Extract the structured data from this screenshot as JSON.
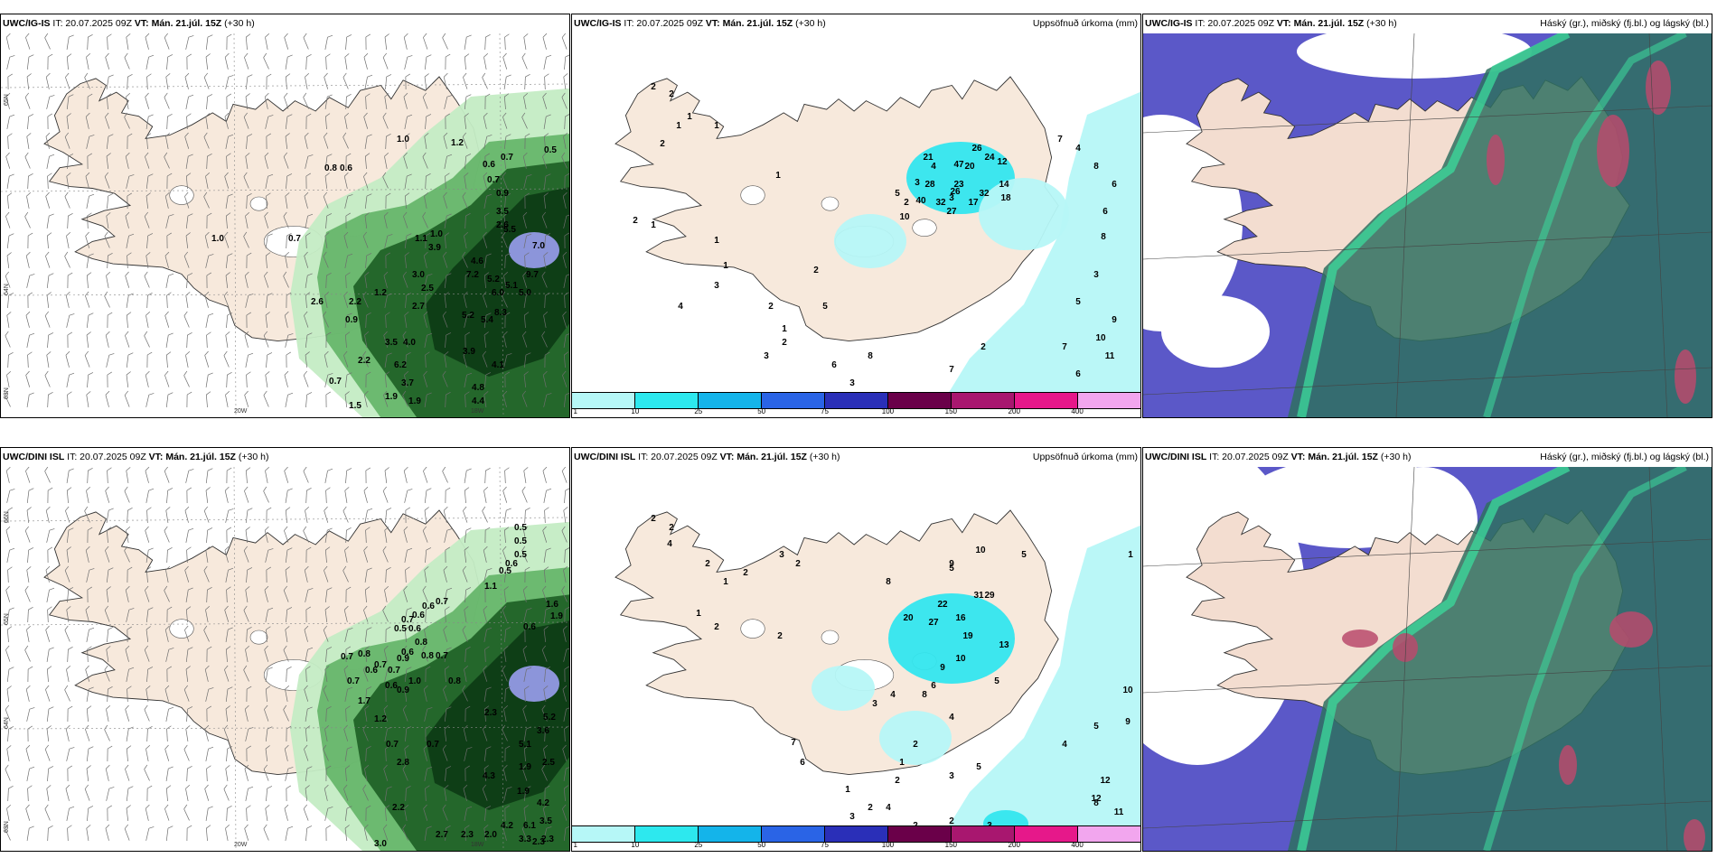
{
  "colors": {
    "land": "#f7e9dc",
    "green_light": "#c4ecc4",
    "green_mid": "#5cb060",
    "green_dark": "#1d5e24",
    "green_darkest": "#0c3a14",
    "blue_precip": "#9a9ef0",
    "cyan_light": "#b6f7f7",
    "cyan": "#33e6ee",
    "cloud_blue": "#5b58c8",
    "cloud_teal": "#2f7060",
    "cloud_green": "#3cd49a",
    "cloud_red": "#b84a6c"
  },
  "legend": {
    "colors": [
      "#b6f7f7",
      "#2de8ee",
      "#14b4ea",
      "#2a64e6",
      "#2a2fb8",
      "#6a0049",
      "#a8176f",
      "#e6188a",
      "#f2a6ee"
    ],
    "labels": [
      "1",
      "10",
      "25",
      "50",
      "75",
      "100",
      "150",
      "200",
      "400"
    ]
  },
  "panels": [
    {
      "id": "p1",
      "model": "UWC/IG-IS",
      "header_mid": "IT: 20.07.2025 09Z",
      "vt_label": "VT:",
      "vt_value": "Mán. 21.júl. 15Z",
      "lead": "(+30 h)",
      "right_title": "",
      "grid_labels": [
        "65N",
        "64N",
        "63N",
        "20W",
        "18W"
      ],
      "values": [
        {
          "v": "1.0"
        },
        {
          "v": "0.7"
        },
        {
          "v": "1.0"
        },
        {
          "v": "1.2"
        },
        {
          "v": "0.8"
        },
        {
          "v": "0.6"
        },
        {
          "v": "0.5"
        },
        {
          "v": "0.7"
        },
        {
          "v": "0.6"
        },
        {
          "v": "0.7"
        },
        {
          "v": "0.9"
        },
        {
          "v": "3.5"
        },
        {
          "v": "2.6"
        },
        {
          "v": "7.0"
        },
        {
          "v": "9.7"
        },
        {
          "v": "5.5"
        },
        {
          "v": "4.6"
        },
        {
          "v": "7.2"
        },
        {
          "v": "5.2"
        },
        {
          "v": "5.1"
        },
        {
          "v": "6.0"
        },
        {
          "v": "5.0"
        },
        {
          "v": "5.2"
        },
        {
          "v": "5.4"
        },
        {
          "v": "8.3"
        },
        {
          "v": "3.5"
        },
        {
          "v": "4.0"
        },
        {
          "v": "6.2"
        },
        {
          "v": "3.7"
        },
        {
          "v": "4.8"
        },
        {
          "v": "4.4"
        },
        {
          "v": "3.9"
        },
        {
          "v": "4.1"
        },
        {
          "v": "2.6"
        },
        {
          "v": "2.2"
        },
        {
          "v": "0.9"
        },
        {
          "v": "0.7"
        },
        {
          "v": "2.2"
        },
        {
          "v": "1.9"
        },
        {
          "v": "1.5"
        },
        {
          "v": "1.9"
        },
        {
          "v": "1.2"
        },
        {
          "v": "3.0"
        },
        {
          "v": "2.5"
        },
        {
          "v": "3.9"
        },
        {
          "v": "1.1"
        },
        {
          "v": "1.0"
        },
        {
          "v": "2.7"
        }
      ]
    },
    {
      "id": "p2",
      "model": "UWC/IG-IS",
      "header_mid": "IT: 20.07.2025 09Z",
      "vt_label": "VT:",
      "vt_value": "Mán. 21.júl. 15Z",
      "lead": "(+30 h)",
      "right_title": "Uppsöfnuð úrkoma (mm)",
      "values": [
        {
          "v": "2"
        },
        {
          "v": "2"
        },
        {
          "v": "1"
        },
        {
          "v": "2"
        },
        {
          "v": "1"
        },
        {
          "v": "1"
        },
        {
          "v": "2"
        },
        {
          "v": "1"
        },
        {
          "v": "1"
        },
        {
          "v": "1"
        },
        {
          "v": "2"
        },
        {
          "v": "3"
        },
        {
          "v": "4"
        },
        {
          "v": "3"
        },
        {
          "v": "5"
        },
        {
          "v": "21"
        },
        {
          "v": "26"
        },
        {
          "v": "20"
        },
        {
          "v": "24"
        },
        {
          "v": "47"
        },
        {
          "v": "12"
        },
        {
          "v": "28"
        },
        {
          "v": "23"
        },
        {
          "v": "14"
        },
        {
          "v": "40"
        },
        {
          "v": "32"
        },
        {
          "v": "17"
        },
        {
          "v": "26"
        },
        {
          "v": "32"
        },
        {
          "v": "18"
        },
        {
          "v": "27"
        },
        {
          "v": "10"
        },
        {
          "v": "7"
        },
        {
          "v": "4"
        },
        {
          "v": "8"
        },
        {
          "v": "6"
        },
        {
          "v": "6"
        },
        {
          "v": "8"
        },
        {
          "v": "3"
        },
        {
          "v": "5"
        },
        {
          "v": "9"
        },
        {
          "v": "10"
        },
        {
          "v": "11"
        },
        {
          "v": "6"
        },
        {
          "v": "7"
        },
        {
          "v": "8"
        },
        {
          "v": "2"
        },
        {
          "v": "1"
        },
        {
          "v": "3"
        },
        {
          "v": "4"
        },
        {
          "v": "2"
        },
        {
          "v": "1"
        },
        {
          "v": "3"
        },
        {
          "v": "2"
        },
        {
          "v": "5"
        },
        {
          "v": "8"
        },
        {
          "v": "6"
        },
        {
          "v": "3"
        },
        {
          "v": "7"
        },
        {
          "v": "2"
        }
      ]
    },
    {
      "id": "p3",
      "model": "UWC/IG-IS",
      "header_mid": "IT: 20.07.2025 09Z",
      "vt_label": "VT:",
      "vt_value": "Mán. 21.júl. 15Z",
      "lead": "(+30 h)",
      "right_title": "Háský (gr.), miðský (fj.bl.) og lágský (bl.)"
    },
    {
      "id": "p4",
      "model": "UWC/DINI ISL",
      "header_mid": "IT: 20.07.2025 09Z",
      "vt_label": "VT:",
      "vt_value": "Mán. 21.júl. 15Z",
      "lead": "(+30 h)",
      "right_title": "",
      "grid_labels": [
        "66N",
        "65N",
        "64N",
        "63N",
        "20W",
        "18W"
      ],
      "values": [
        {
          "v": "0.5"
        },
        {
          "v": "0.5"
        },
        {
          "v": "0.5"
        },
        {
          "v": "0.6"
        },
        {
          "v": "0.5"
        },
        {
          "v": "1.1"
        },
        {
          "v": "1.6"
        },
        {
          "v": "1.9"
        },
        {
          "v": "0.6"
        },
        {
          "v": "0.7"
        },
        {
          "v": "0.6"
        },
        {
          "v": "0.6"
        },
        {
          "v": "0.7"
        },
        {
          "v": "0.5"
        },
        {
          "v": "0.6"
        },
        {
          "v": "0.8"
        },
        {
          "v": "0.6"
        },
        {
          "v": "0.8"
        },
        {
          "v": "0.9"
        },
        {
          "v": "0.7"
        },
        {
          "v": "0.7"
        },
        {
          "v": "0.6"
        },
        {
          "v": "0.9"
        },
        {
          "v": "0.8"
        },
        {
          "v": "0.7"
        },
        {
          "v": "1.0"
        },
        {
          "v": "0.6"
        },
        {
          "v": "0.8"
        },
        {
          "v": "0.7"
        },
        {
          "v": "2.3"
        },
        {
          "v": "5.2"
        },
        {
          "v": "3.6"
        },
        {
          "v": "5.1"
        },
        {
          "v": "1.9"
        },
        {
          "v": "2.5"
        },
        {
          "v": "4.2"
        },
        {
          "v": "3.5"
        },
        {
          "v": "6.1"
        },
        {
          "v": "4.2"
        },
        {
          "v": "3.3"
        },
        {
          "v": "2.3"
        },
        {
          "v": "0.7"
        },
        {
          "v": "1.7"
        },
        {
          "v": "1.2"
        },
        {
          "v": "2.8"
        },
        {
          "v": "4.3"
        },
        {
          "v": "2.2"
        },
        {
          "v": "3.0"
        },
        {
          "v": "2.7"
        },
        {
          "v": "2.3"
        },
        {
          "v": "2.0"
        },
        {
          "v": "2.3"
        },
        {
          "v": "1.9"
        },
        {
          "v": "0.7"
        },
        {
          "v": "0.7"
        }
      ]
    },
    {
      "id": "p5",
      "model": "UWC/DINI ISL",
      "header_mid": "IT: 20.07.2025 09Z",
      "vt_label": "VT:",
      "vt_value": "Mán. 21.júl. 15Z",
      "lead": "(+30 h)",
      "right_title": "Uppsöfnuð úrkoma (mm)",
      "values": [
        {
          "v": "2"
        },
        {
          "v": "2"
        },
        {
          "v": "4"
        },
        {
          "v": "2"
        },
        {
          "v": "1"
        },
        {
          "v": "2"
        },
        {
          "v": "1"
        },
        {
          "v": "2"
        },
        {
          "v": "2"
        },
        {
          "v": "3"
        },
        {
          "v": "2"
        },
        {
          "v": "10"
        },
        {
          "v": "9"
        },
        {
          "v": "8"
        },
        {
          "v": "5"
        },
        {
          "v": "5"
        },
        {
          "v": "31"
        },
        {
          "v": "22"
        },
        {
          "v": "29"
        },
        {
          "v": "27"
        },
        {
          "v": "20"
        },
        {
          "v": "16"
        },
        {
          "v": "19"
        },
        {
          "v": "13"
        },
        {
          "v": "10"
        },
        {
          "v": "9"
        },
        {
          "v": "6"
        },
        {
          "v": "5"
        },
        {
          "v": "8"
        },
        {
          "v": "4"
        },
        {
          "v": "3"
        },
        {
          "v": "4"
        },
        {
          "v": "1"
        },
        {
          "v": "10"
        },
        {
          "v": "9"
        },
        {
          "v": "5"
        },
        {
          "v": "4"
        },
        {
          "v": "12"
        },
        {
          "v": "12"
        },
        {
          "v": "11"
        },
        {
          "v": "8"
        },
        {
          "v": "5"
        },
        {
          "v": "3"
        },
        {
          "v": "2"
        },
        {
          "v": "1"
        },
        {
          "v": "2"
        },
        {
          "v": "4"
        },
        {
          "v": "2"
        },
        {
          "v": "3"
        },
        {
          "v": "1"
        },
        {
          "v": "5"
        },
        {
          "v": "3"
        },
        {
          "v": "2"
        },
        {
          "v": "2"
        },
        {
          "v": "1"
        },
        {
          "v": "6"
        },
        {
          "v": "7"
        }
      ]
    },
    {
      "id": "p6",
      "model": "UWC/DINI ISL",
      "header_mid": "IT: 20.07.2025 09Z",
      "vt_label": "VT:",
      "vt_value": "Mán. 21.júl. 15Z",
      "lead": "(+30 h)",
      "right_title": "Háský (gr.), miðský (fj.bl.) og lágský (bl.)"
    }
  ]
}
